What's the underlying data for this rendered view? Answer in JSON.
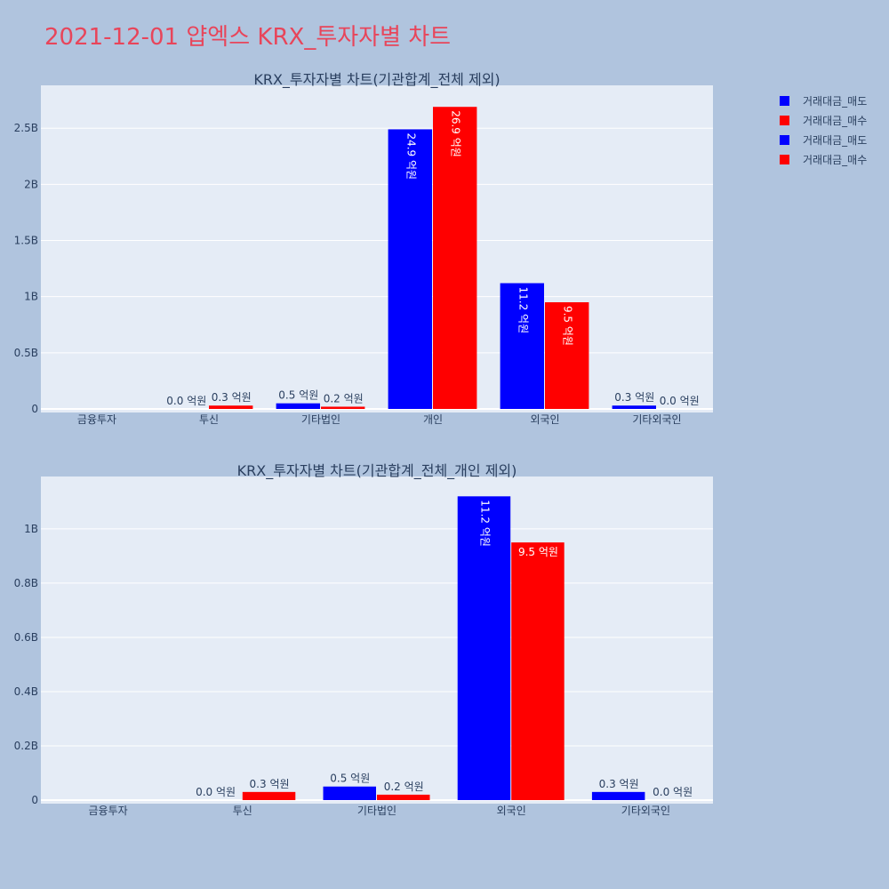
{
  "title": "2021-12-01 얍엑스 KRX_투자자별 차트",
  "colors": {
    "sell": "#0000ff",
    "buy": "#ff0000",
    "plot_bg": "#e5ecf6",
    "paper_bg": "#b0c4de",
    "title": "#e8455a"
  },
  "legend": [
    {
      "name": "거래대금_매도",
      "color": "#0000ff"
    },
    {
      "name": "거래대금_매수",
      "color": "#ff0000"
    },
    {
      "name": "거래대금_매도",
      "color": "#0000ff"
    },
    {
      "name": "거래대금_매수",
      "color": "#ff0000"
    }
  ],
  "chart_data": [
    {
      "type": "bar",
      "title": "KRX_투자자별 차트(기관합계_전체 제외)",
      "categories": [
        "금융투자",
        "투신",
        "기타법인",
        "개인",
        "외국인",
        "기타외국인"
      ],
      "ylim": [
        0,
        2850000000.0
      ],
      "yticks": [
        {
          "value": 0,
          "label": "0"
        },
        {
          "value": 500000000,
          "label": "0.5B"
        },
        {
          "value": 1000000000,
          "label": "1B"
        },
        {
          "value": 1500000000,
          "label": "1.5B"
        },
        {
          "value": 2000000000,
          "label": "2B"
        },
        {
          "value": 2500000000,
          "label": "2.5B"
        }
      ],
      "series": [
        {
          "name": "거래대금_매도",
          "color": "#0000ff",
          "values": [
            0,
            0,
            50000000,
            2490000000,
            1120000000,
            30000000
          ],
          "labels": [
            "",
            "0.0 억원",
            "0.5 억원",
            "24.9 억원",
            "11.2 억원",
            "0.3 억원"
          ],
          "label_modes": [
            "none",
            "out",
            "out",
            "in-rot",
            "in-rot",
            "out"
          ]
        },
        {
          "name": "거래대금_매수",
          "color": "#ff0000",
          "values": [
            0,
            30000000,
            20000000,
            2690000000,
            950000000,
            0
          ],
          "labels": [
            "",
            "0.3 억원",
            "0.2 억원",
            "26.9 억원",
            "9.5 억원",
            "0.0 억원"
          ],
          "label_modes": [
            "none",
            "out",
            "out",
            "in-rot",
            "in-rot",
            "out"
          ]
        }
      ]
    },
    {
      "type": "bar",
      "title": "KRX_투자자별 차트(기관합계_전체_개인 제외)",
      "categories": [
        "금융투자",
        "투신",
        "기타법인",
        "외국인",
        "기타외국인"
      ],
      "ylim": [
        0,
        1180000000.0
      ],
      "yticks": [
        {
          "value": 0,
          "label": "0"
        },
        {
          "value": 200000000,
          "label": "0.2B"
        },
        {
          "value": 400000000,
          "label": "0.4B"
        },
        {
          "value": 600000000,
          "label": "0.6B"
        },
        {
          "value": 800000000,
          "label": "0.8B"
        },
        {
          "value": 1000000000,
          "label": "1B"
        }
      ],
      "series": [
        {
          "name": "거래대금_매도",
          "color": "#0000ff",
          "values": [
            0,
            0,
            50000000,
            1120000000,
            30000000
          ],
          "labels": [
            "",
            "0.0 억원",
            "0.5 억원",
            "11.2 억원",
            "0.3 억원"
          ],
          "label_modes": [
            "none",
            "out",
            "out",
            "in-rot",
            "out"
          ]
        },
        {
          "name": "거래대금_매수",
          "color": "#ff0000",
          "values": [
            0,
            30000000,
            20000000,
            950000000,
            0
          ],
          "labels": [
            "",
            "0.3 억원",
            "0.2 억원",
            "9.5 억원",
            "0.0 억원"
          ],
          "label_modes": [
            "none",
            "out",
            "out",
            "in",
            "out"
          ]
        }
      ]
    }
  ]
}
